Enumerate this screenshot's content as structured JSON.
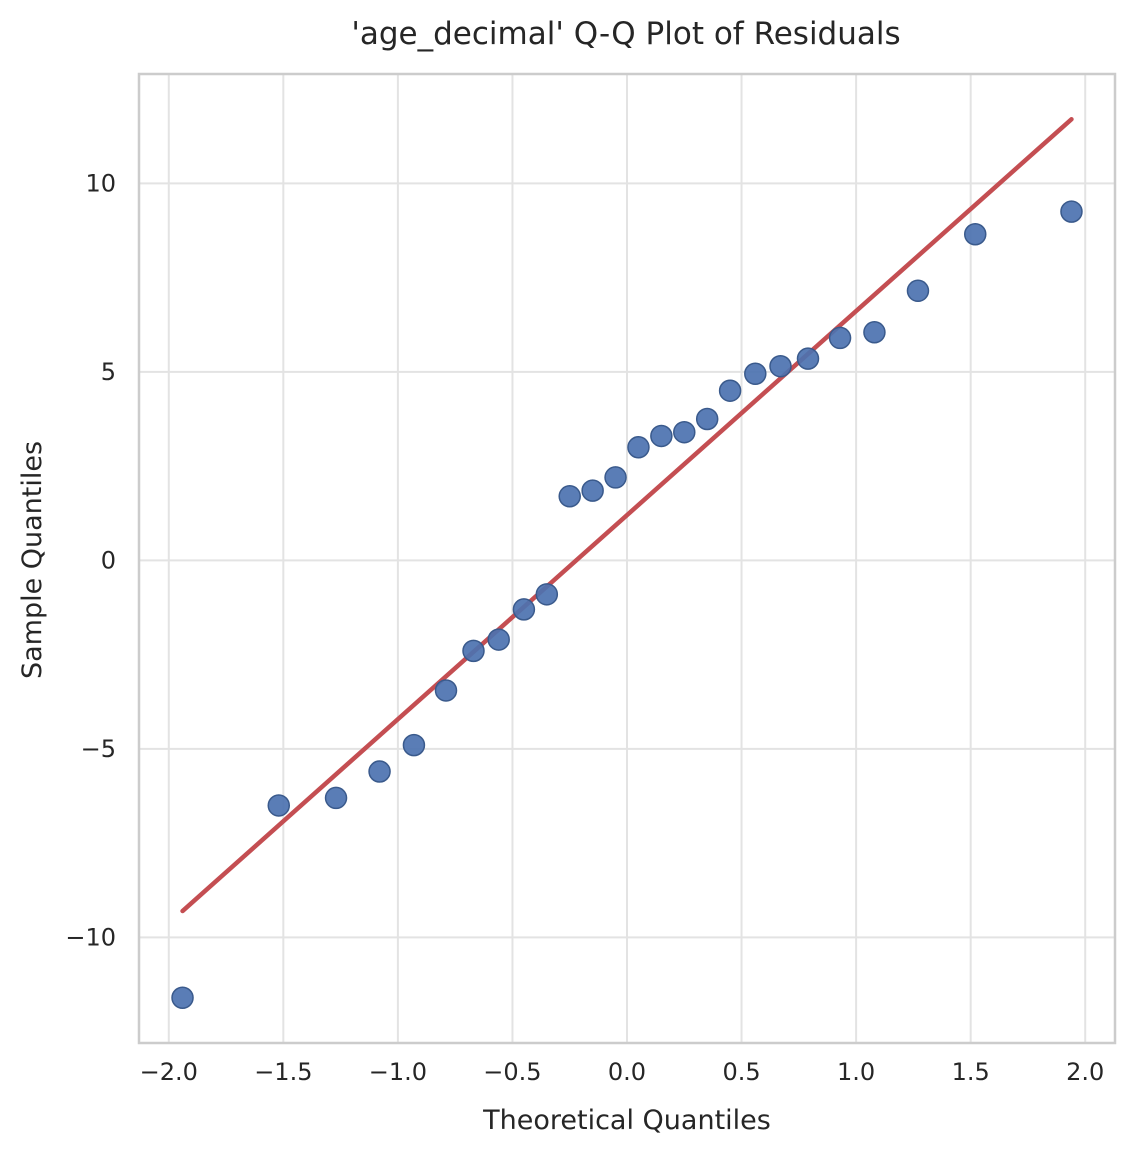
{
  "chart_data": {
    "type": "scatter",
    "title": "'age_decimal' Q-Q Plot of Residuals",
    "xlabel": "Theoretical Quantiles",
    "ylabel": "Sample Quantiles",
    "xlim": [
      -2.13,
      2.13
    ],
    "ylim": [
      -12.8,
      12.9
    ],
    "xticks": [
      -2.0,
      -1.5,
      -1.0,
      -0.5,
      0.0,
      0.5,
      1.0,
      1.5,
      2.0
    ],
    "xtick_labels": [
      "−2.0",
      "−1.5",
      "−1.0",
      "−0.5",
      "0.0",
      "0.5",
      "1.0",
      "1.5",
      "2.0"
    ],
    "yticks": [
      -10,
      -5,
      0,
      5,
      10
    ],
    "ytick_labels": [
      "−10",
      "−5",
      "0",
      "5",
      "10"
    ],
    "grid": true,
    "points": {
      "x": [
        -1.94,
        -1.52,
        -1.27,
        -1.08,
        -0.93,
        -0.79,
        -0.67,
        -0.56,
        -0.45,
        -0.35,
        -0.25,
        -0.15,
        -0.05,
        0.05,
        0.15,
        0.25,
        0.35,
        0.45,
        0.56,
        0.67,
        0.79,
        0.93,
        1.08,
        1.27,
        1.52,
        1.94
      ],
      "y": [
        -11.6,
        -6.5,
        -6.3,
        -5.6,
        -4.9,
        -3.45,
        -2.4,
        -2.1,
        -1.3,
        -0.9,
        1.7,
        1.85,
        2.2,
        3.0,
        3.3,
        3.4,
        3.75,
        4.5,
        4.95,
        5.15,
        5.35,
        5.9,
        6.05,
        7.15,
        8.65,
        9.25
      ],
      "color": "#4c72b0"
    },
    "reference_line": {
      "x": [
        -1.94,
        1.94
      ],
      "y": [
        -9.3,
        11.7
      ],
      "color": "#c44e52"
    }
  }
}
